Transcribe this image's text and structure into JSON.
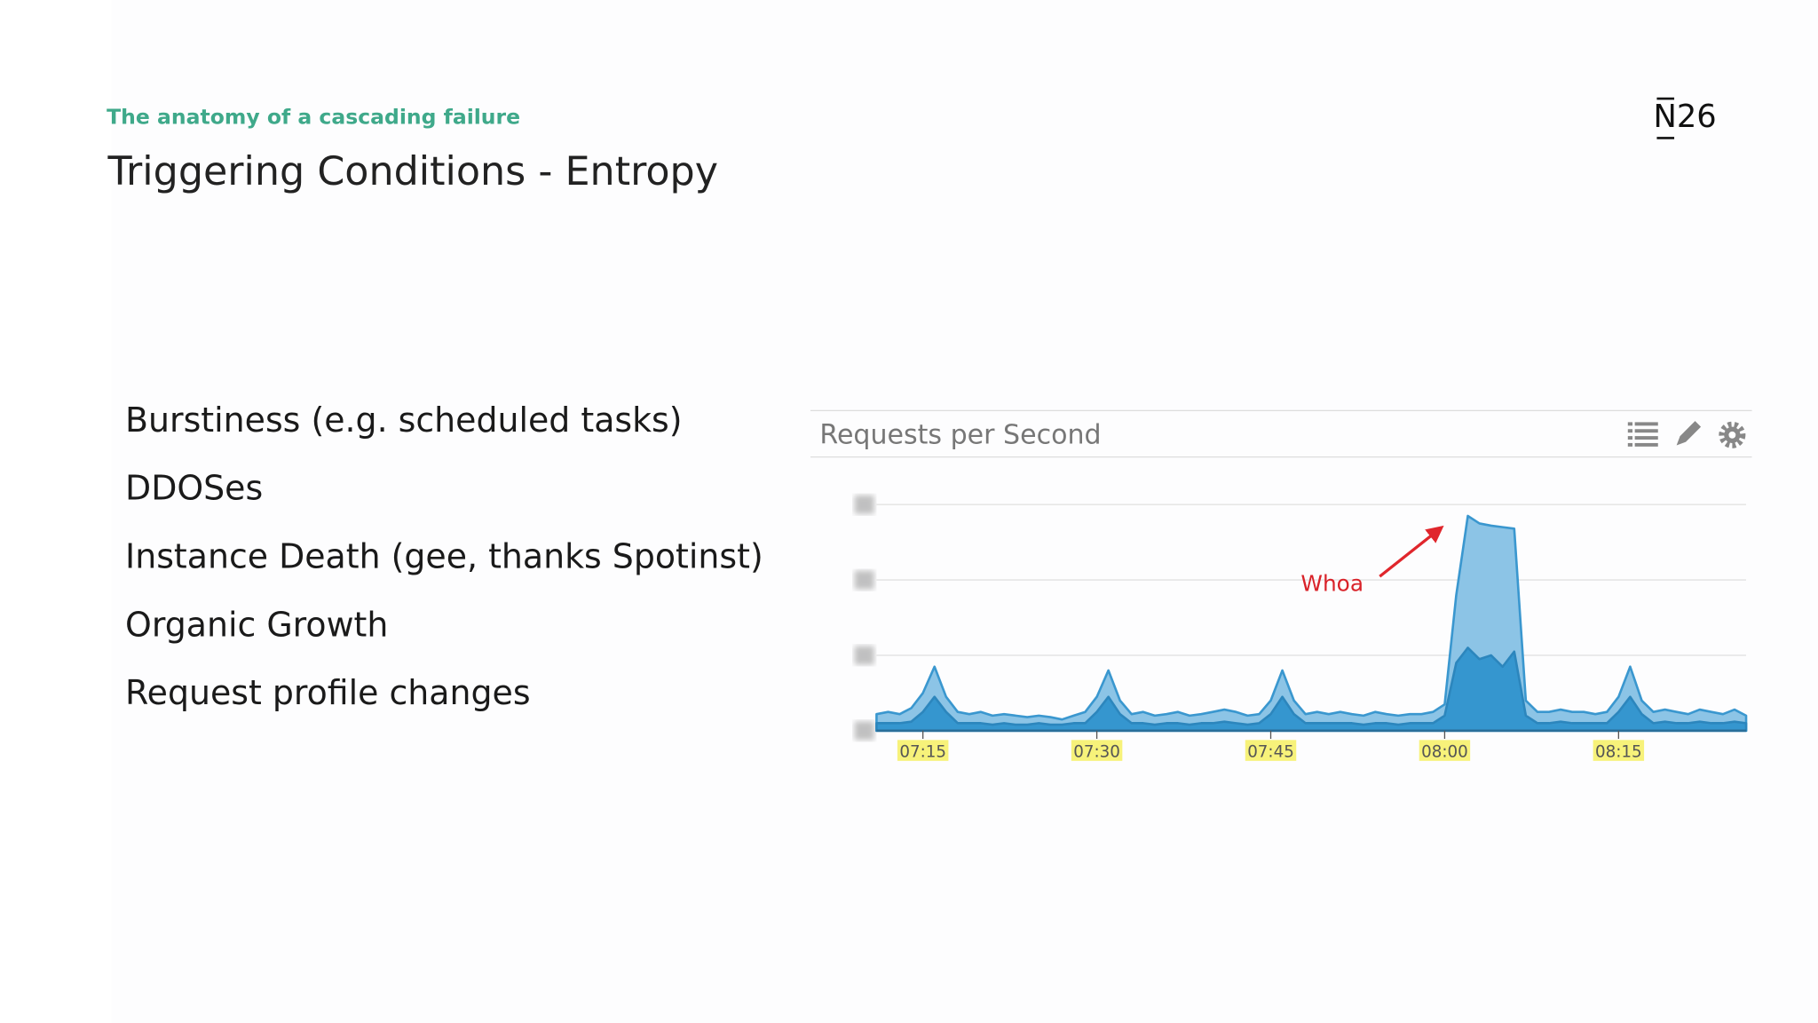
{
  "header": {
    "kicker": "The anatomy of a cascading failure",
    "title": "Triggering Conditions - Entropy",
    "logo": "N26"
  },
  "bullets": [
    "Burstiness (e.g. scheduled tasks)",
    "DDOSes",
    "Instance Death (gee, thanks Spotinst)",
    "Organic Growth",
    "Request profile changes"
  ],
  "chart_data": {
    "type": "area",
    "title": "Requests per Second",
    "annotation": "Whoa",
    "x": [
      431,
      432,
      433,
      434,
      435,
      436,
      437,
      438,
      439,
      440,
      441,
      442,
      443,
      444,
      445,
      446,
      447,
      448,
      449,
      450,
      451,
      452,
      453,
      454,
      455,
      456,
      457,
      458,
      459,
      460,
      461,
      462,
      463,
      464,
      465,
      466,
      467,
      468,
      469,
      470,
      471,
      472,
      473,
      474,
      475,
      476,
      477,
      478,
      479,
      480,
      481,
      482,
      483,
      484,
      485,
      486,
      487,
      488,
      489,
      490,
      491,
      492,
      493,
      494,
      495,
      496,
      497,
      498,
      499,
      500,
      501,
      502,
      503,
      504,
      505,
      506
    ],
    "series": [
      {
        "color": "#8cc4e6",
        "stroke": "#3a97cf",
        "values": [
          0.22,
          0.25,
          0.22,
          0.3,
          0.5,
          0.85,
          0.45,
          0.25,
          0.22,
          0.25,
          0.2,
          0.22,
          0.2,
          0.18,
          0.2,
          0.18,
          0.15,
          0.2,
          0.25,
          0.45,
          0.8,
          0.4,
          0.22,
          0.25,
          0.2,
          0.22,
          0.25,
          0.2,
          0.22,
          0.25,
          0.28,
          0.25,
          0.2,
          0.22,
          0.4,
          0.8,
          0.4,
          0.22,
          0.25,
          0.22,
          0.25,
          0.22,
          0.2,
          0.25,
          0.22,
          0.2,
          0.22,
          0.22,
          0.25,
          0.35,
          1.8,
          2.85,
          2.75,
          2.72,
          2.7,
          2.68,
          0.4,
          0.25,
          0.25,
          0.28,
          0.25,
          0.25,
          0.22,
          0.25,
          0.45,
          0.85,
          0.4,
          0.25,
          0.28,
          0.25,
          0.22,
          0.28,
          0.25,
          0.22,
          0.28,
          0.2
        ]
      },
      {
        "color": "#3596cf",
        "stroke": "#2c86bd",
        "values": [
          0.1,
          0.1,
          0.1,
          0.12,
          0.25,
          0.45,
          0.25,
          0.1,
          0.1,
          0.1,
          0.08,
          0.1,
          0.08,
          0.08,
          0.1,
          0.08,
          0.08,
          0.1,
          0.1,
          0.25,
          0.45,
          0.22,
          0.1,
          0.1,
          0.08,
          0.1,
          0.1,
          0.08,
          0.1,
          0.1,
          0.12,
          0.1,
          0.08,
          0.1,
          0.22,
          0.45,
          0.22,
          0.1,
          0.1,
          0.1,
          0.1,
          0.1,
          0.08,
          0.1,
          0.1,
          0.08,
          0.1,
          0.1,
          0.1,
          0.2,
          0.9,
          1.1,
          0.95,
          1.0,
          0.85,
          1.05,
          0.2,
          0.1,
          0.1,
          0.12,
          0.1,
          0.1,
          0.1,
          0.1,
          0.25,
          0.45,
          0.22,
          0.1,
          0.12,
          0.1,
          0.1,
          0.12,
          0.1,
          0.1,
          0.12,
          0.1
        ]
      }
    ],
    "xlim": [
      431,
      506
    ],
    "ylim": [
      0,
      3
    ],
    "yticks": [
      0,
      1,
      2,
      3
    ],
    "grid": true,
    "xticks": [
      {
        "value": 435,
        "label": "07:15"
      },
      {
        "value": 450,
        "label": "07:30"
      },
      {
        "value": 465,
        "label": "07:45"
      },
      {
        "value": 480,
        "label": "08:00"
      },
      {
        "value": 495,
        "label": "08:15"
      }
    ]
  }
}
